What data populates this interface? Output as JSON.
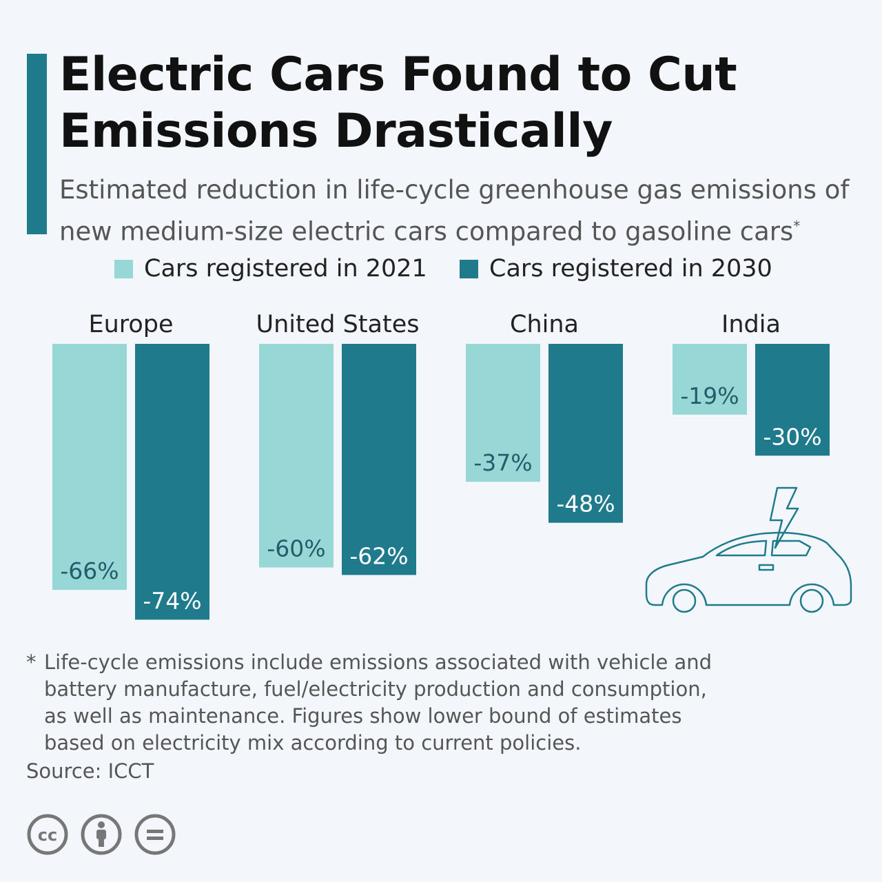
{
  "header": {
    "title": "Electric Cars Found to Cut Emissions Drastically",
    "subtitle": "Estimated reduction in life-cycle greenhouse gas emissions of new medium-size electric cars compared to gasoline cars",
    "subtitle_mark": "*",
    "accent_color": "#1f7a8c"
  },
  "chart_data": {
    "type": "bar",
    "categories": [
      "Europe",
      "United States",
      "China",
      "India"
    ],
    "series": [
      {
        "name": "Cars registered in 2021",
        "values": [
          -66,
          -60,
          -37,
          -19
        ],
        "color": "#97d7d6"
      },
      {
        "name": "Cars registered in 2030",
        "values": [
          -74,
          -62,
          -48,
          -30
        ],
        "color": "#1f7a8c"
      }
    ],
    "value_format": "{v}%",
    "ylim": [
      -74,
      0
    ],
    "grid": false,
    "legend_position": "top"
  },
  "footnote": {
    "mark": "*",
    "text": "Life-cycle emissions include emissions associated with vehicle and\nbattery manufacture, fuel/electricity production and consumption,\nas well as maintenance. Figures show lower bound of estimates\nbased on electricity mix according to current policies."
  },
  "source": "Source: ICCT",
  "icons": [
    "cc-icon",
    "by-attribution-icon",
    "no-derivatives-icon",
    "electric-car-icon"
  ]
}
